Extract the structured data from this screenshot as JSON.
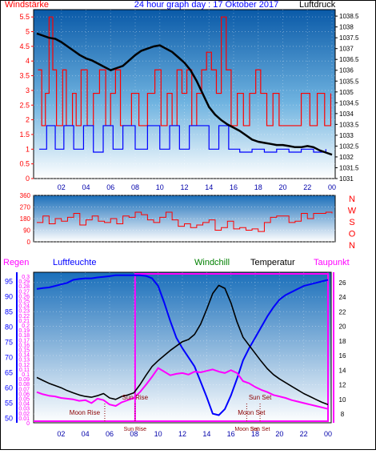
{
  "colors": {
    "frame": "#000000",
    "red": "#ff0000",
    "blue": "#0000ff",
    "green": "#008000",
    "magenta": "#ff00ff",
    "darkred": "#8b0000",
    "sky_top": "#0a5aa8",
    "sky_bottom": "#ffffff"
  },
  "header": {
    "left": "Windstärke",
    "center": "24 hour graph day : 17 Oktober 2017",
    "right": "Luftdruck"
  },
  "legend": {
    "regen": "Regen",
    "luftfeuchte": "Luftfeuchte",
    "windchill": "Windchill",
    "temperatur": "Temperatur",
    "taupunkt": "Taupunkt"
  },
  "direction_letters": [
    "N",
    "W",
    "S",
    "O",
    "N"
  ],
  "chart_data": [
    {
      "type": "line",
      "name": "wind_and_pressure",
      "x_ticks": [
        "02",
        "04",
        "06",
        "08",
        "10",
        "12",
        "14",
        "16",
        "18",
        "20",
        "22",
        "00"
      ],
      "y_left_label": "Windstärke",
      "y_left_ticks": [
        "0",
        "0.5",
        "1",
        "1.5",
        "2",
        "2.5",
        "3",
        "3.5",
        "4",
        "4.5",
        "5",
        "5.5"
      ],
      "y_left_range": [
        0,
        5.75
      ],
      "y_right_label": "Luftdruck",
      "y_right_ticks": [
        "1031",
        "1031.5",
        "1032",
        "1032.5",
        "1033",
        "1033.5",
        "1034",
        "1034.5",
        "1035",
        "1035.5",
        "1036",
        "1036.5",
        "1037",
        "1037.5",
        "1038",
        "1038.5"
      ],
      "y_right_range": [
        1031,
        1038.8
      ],
      "pressure": {
        "x": [
          0,
          0.5,
          1,
          1.5,
          2,
          2.5,
          3,
          3.5,
          4,
          4.5,
          5,
          5.5,
          6,
          6.5,
          7,
          7.5,
          8,
          8.5,
          9,
          9.5,
          10,
          10.5,
          11,
          11.5,
          12,
          12.5,
          13,
          13.5,
          14,
          14.5,
          15,
          15.5,
          16,
          16.5,
          17,
          17.5,
          18,
          18.5,
          19,
          19.5,
          20,
          20.5,
          21,
          21.5,
          22,
          22.5,
          23,
          23.5,
          24
        ],
        "values": [
          1037.7,
          1037.6,
          1037.5,
          1037.45,
          1037.3,
          1037.1,
          1036.9,
          1036.7,
          1036.55,
          1036.45,
          1036.3,
          1036.15,
          1036.0,
          1036.1,
          1036.2,
          1036.45,
          1036.7,
          1036.9,
          1037.0,
          1037.1,
          1037.15,
          1037.0,
          1036.85,
          1036.6,
          1036.35,
          1036.0,
          1035.5,
          1034.9,
          1034.3,
          1033.95,
          1033.7,
          1033.5,
          1033.35,
          1033.2,
          1033.0,
          1032.8,
          1032.7,
          1032.65,
          1032.6,
          1032.55,
          1032.55,
          1032.5,
          1032.45,
          1032.45,
          1032.5,
          1032.45,
          1032.3,
          1032.2,
          1032.1
        ]
      },
      "wind": {
        "description": "gust series (red) and average series (blue), values in Bft-like steps",
        "gust_x": [
          0.1,
          0.4,
          0.7,
          1.0,
          1.3,
          1.6,
          2.1,
          2.4,
          2.9,
          3.2,
          3.6,
          4.1,
          4.6,
          5.1,
          5.6,
          6.0,
          6.4,
          6.8,
          7.2,
          7.7,
          8.3,
          9.0,
          9.6,
          10.1,
          10.6,
          11.0,
          11.4,
          11.8,
          12.2,
          12.6,
          13.0,
          13.4,
          13.8,
          14.2,
          14.6,
          15.0,
          15.4,
          15.8,
          16.3,
          16.8,
          17.3,
          17.8,
          18.2,
          18.7,
          19.2,
          19.7,
          20.3,
          20.9,
          21.5,
          22.2,
          22.8,
          23.4,
          23.9
        ],
        "gust_values": [
          3.7,
          1.8,
          2.9,
          5.5,
          3.7,
          1.8,
          3.7,
          1.8,
          2.9,
          1.8,
          3.7,
          1.8,
          2.9,
          3.7,
          1.8,
          2.9,
          3.7,
          1.8,
          1.8,
          2.9,
          1.8,
          2.9,
          3.7,
          1.8,
          2.9,
          1.8,
          3.7,
          2.9,
          3.7,
          1.8,
          2.9,
          3.7,
          4.3,
          3.7,
          2.9,
          5.5,
          3.7,
          1.8,
          2.9,
          1.8,
          2.9,
          3.7,
          2.9,
          1.8,
          2.9,
          1.8,
          1.8,
          1.8,
          2.9,
          1.8,
          2.9,
          1.8,
          2.9
        ],
        "avg_x": [
          0.2,
          0.8,
          1.5,
          2.2,
          3.0,
          3.8,
          4.6,
          5.4,
          6.2,
          7.0,
          8.0,
          9.0,
          10.0,
          10.8,
          11.6,
          12.4,
          13.2,
          14.0,
          14.8,
          15.6,
          16.5,
          17.5,
          18.5,
          19.5,
          20.5,
          21.5,
          22.5,
          23.5
        ],
        "avg_values": [
          1.0,
          1.8,
          1.0,
          1.8,
          1.0,
          1.8,
          0.9,
          1.8,
          1.0,
          1.8,
          1.0,
          1.8,
          1.0,
          1.8,
          1.0,
          1.8,
          1.8,
          1.0,
          1.8,
          1.0,
          0.9,
          1.0,
          0.9,
          1.0,
          0.9,
          1.0,
          0.9,
          1.0
        ]
      }
    },
    {
      "type": "line",
      "name": "wind_direction",
      "y_ticks": [
        "0",
        "90",
        "180",
        "270",
        "360"
      ],
      "y_range": [
        0,
        360
      ],
      "x": [
        0,
        0.5,
        1,
        1.5,
        2,
        2.5,
        3,
        3.5,
        4,
        4.5,
        5,
        5.5,
        6,
        6.5,
        7,
        7.5,
        8,
        8.5,
        9,
        9.5,
        10,
        10.5,
        11,
        11.5,
        12,
        12.5,
        13,
        13.5,
        14,
        14.5,
        15,
        15.5,
        16,
        16.5,
        17,
        17.5,
        18,
        18.5,
        19,
        19.5,
        20,
        20.5,
        21,
        21.5,
        22,
        22.5,
        23,
        23.5,
        24
      ],
      "values": [
        150,
        200,
        140,
        180,
        160,
        190,
        220,
        130,
        170,
        200,
        160,
        150,
        180,
        140,
        200,
        190,
        230,
        210,
        170,
        150,
        190,
        230,
        170,
        120,
        140,
        110,
        130,
        150,
        170,
        90,
        110,
        160,
        100,
        110,
        90,
        100,
        80,
        150,
        190,
        200,
        200,
        150,
        160,
        220,
        180,
        220,
        220,
        230,
        220
      ]
    },
    {
      "type": "line",
      "name": "temperature_humidity_rain",
      "x_ticks": [
        "02",
        "04",
        "06",
        "08",
        "10",
        "12",
        "14",
        "16",
        "18",
        "20",
        "22",
        "00"
      ],
      "rain_ticks": [
        "0",
        "0.01",
        "0.02",
        "0.03",
        "0.04",
        "0.05",
        "0.06",
        "0.07",
        "0.08",
        "0.09",
        "0.1",
        "0.11",
        "0.12",
        "0.13",
        "0.14",
        "0.15",
        "0.16",
        "0.17",
        "0.18",
        "0.19",
        "0.2",
        "0.21",
        "0.22",
        "0.23",
        "0.24",
        "0.25",
        "0.26",
        "0.27",
        "0.28",
        "0.29",
        "0.3"
      ],
      "humidity_ticks": [
        "50",
        "55",
        "60",
        "65",
        "70",
        "75",
        "80",
        "85",
        "90",
        "95"
      ],
      "temp_ticks": [
        "8",
        "10",
        "12",
        "14",
        "16",
        "18",
        "20",
        "22",
        "24",
        "26"
      ],
      "temp_range": [
        6.8,
        27.4
      ],
      "humidity_range": [
        48.5,
        98
      ],
      "x": [
        0,
        0.5,
        1,
        1.5,
        2,
        2.5,
        3,
        3.5,
        4,
        4.5,
        5,
        5.5,
        6,
        6.5,
        7,
        7.5,
        8,
        8.5,
        9,
        9.5,
        10,
        10.5,
        11,
        11.5,
        12,
        12.5,
        13,
        13.5,
        14,
        14.5,
        15,
        15.5,
        16,
        16.5,
        17,
        17.5,
        18,
        18.5,
        19,
        19.5,
        20,
        20.5,
        21,
        21.5,
        22,
        22.5,
        23,
        23.5,
        24
      ],
      "temperatur": [
        13.0,
        12.6,
        12.2,
        11.9,
        11.6,
        11.2,
        10.9,
        10.6,
        10.4,
        10.3,
        10.5,
        10.8,
        10.2,
        10.0,
        10.4,
        10.6,
        10.9,
        12.0,
        13.3,
        14.5,
        15.3,
        16.0,
        16.7,
        17.3,
        17.9,
        18.2,
        18.9,
        20.3,
        22.3,
        24.5,
        25.6,
        25.2,
        23.2,
        20.6,
        18.5,
        17.4,
        16.3,
        15.2,
        14.2,
        13.4,
        12.8,
        12.3,
        11.8,
        11.3,
        10.8,
        10.4,
        10.0,
        9.6,
        9.3
      ],
      "taupunkt": [
        11.0,
        10.7,
        10.5,
        10.4,
        10.2,
        10.1,
        10.0,
        9.8,
        9.9,
        9.5,
        10.1,
        9.9,
        9.3,
        9.1,
        9.6,
        9.9,
        10.2,
        11.0,
        12.0,
        13.1,
        14.3,
        13.8,
        13.3,
        13.5,
        13.6,
        13.4,
        13.8,
        13.7,
        13.9,
        14.1,
        13.8,
        13.6,
        14.0,
        13.6,
        12.5,
        12.2,
        11.7,
        11.3,
        11.0,
        10.6,
        10.4,
        10.2,
        9.9,
        9.7,
        9.5,
        9.3,
        9.1,
        8.9,
        8.7
      ],
      "luftfeuchte": [
        92.5,
        92.8,
        93.0,
        93.5,
        94.0,
        94.5,
        95.5,
        95.8,
        96.0,
        96.0,
        96.3,
        96.5,
        96.7,
        97.0,
        97.0,
        97.0,
        97.0,
        97.0,
        96.8,
        96.0,
        93.5,
        88.0,
        82.0,
        76.5,
        73.0,
        70.0,
        67.0,
        62.0,
        57.0,
        51.5,
        51.0,
        53.0,
        57.5,
        63.0,
        69.0,
        73.0,
        76.5,
        80.0,
        83.5,
        86.5,
        89.0,
        90.5,
        91.5,
        92.5,
        93.5,
        94.0,
        94.5,
        95.0,
        95.5
      ],
      "regen": [
        0,
        0,
        0,
        0,
        0,
        0,
        0,
        0,
        0,
        0,
        0,
        0,
        0,
        0,
        0,
        0,
        0,
        0,
        0,
        0,
        0,
        0,
        0,
        0,
        0,
        0,
        0,
        0,
        0,
        0,
        0,
        0,
        0,
        0,
        0,
        0,
        0,
        0,
        0,
        0,
        0,
        0,
        0,
        0,
        0,
        0,
        0,
        0,
        0
      ],
      "annotations": [
        {
          "label": "Moon Rise",
          "x": 5.6
        },
        {
          "label": "Sun Rise",
          "x": 8.1
        },
        {
          "label": "Sun Set",
          "x": 18.4
        },
        {
          "label": "Moon Set",
          "x": 17.3
        }
      ],
      "axis_marks": [
        "Sun Rise",
        "Moon Set",
        "Sun Set"
      ],
      "day_period": [
        8.1,
        24
      ]
    }
  ]
}
